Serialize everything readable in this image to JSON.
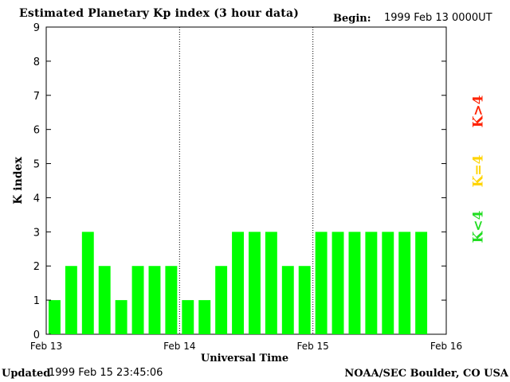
{
  "header": {
    "title": "Estimated Planetary Kp index (3 hour data)",
    "begin_label": "Begin:",
    "begin_value": "1999 Feb 13 0000UT"
  },
  "footer": {
    "updated_label": "Updated",
    "updated_value": "1999 Feb 15 23:45:06",
    "credit": "NOAA/SEC Boulder, CO USA"
  },
  "legend": {
    "items": [
      {
        "label": "K<4",
        "color": "#22dd22"
      },
      {
        "label": "K=4",
        "color": "#ffd400"
      },
      {
        "label": "K>4",
        "color": "#ff2200"
      }
    ]
  },
  "colors": {
    "low": "#00ff00",
    "equal": "#ffff00",
    "high": "#ff0000"
  },
  "chart_data": {
    "type": "bar",
    "title": "Estimated Planetary Kp index (3 hour data)",
    "xlabel": "Universal Time",
    "ylabel": "K index",
    "ylim": [
      0,
      9
    ],
    "yticks": [
      "0",
      "1",
      "2",
      "3",
      "4",
      "5",
      "6",
      "7",
      "8",
      "9"
    ],
    "day_labels": [
      "Feb 13",
      "Feb 14",
      "Feb 15",
      "Feb 16"
    ],
    "day_separators": "dotted",
    "values": [
      1,
      2,
      3,
      2,
      1,
      2,
      2,
      2,
      1,
      1,
      2,
      3,
      3,
      3,
      2,
      2,
      3,
      3,
      3,
      3,
      3,
      3,
      3
    ],
    "bar_color": "#00ff00"
  }
}
